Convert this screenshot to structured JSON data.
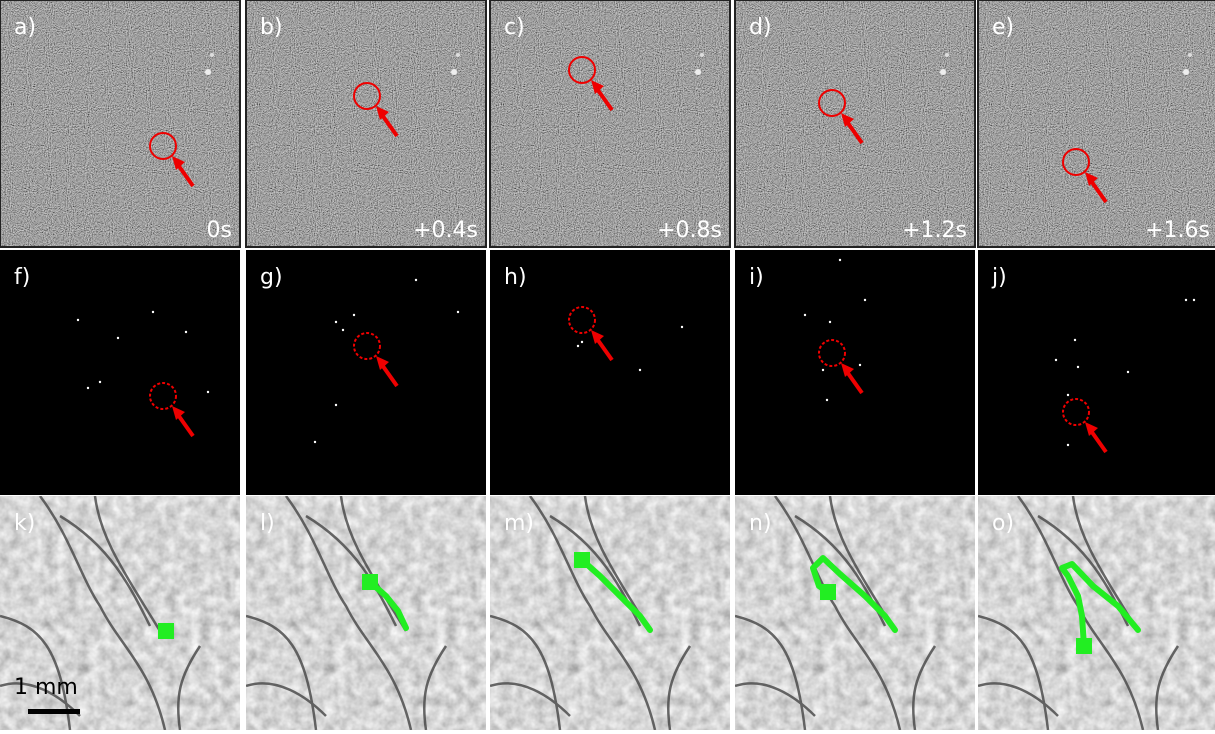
{
  "rows": [
    [
      {
        "label": "a)",
        "time": "0s"
      },
      {
        "label": "b)",
        "time": "+0.4s"
      },
      {
        "label": "c)",
        "time": "+0.8s"
      },
      {
        "label": "d)",
        "time": "+1.2s"
      },
      {
        "label": "e)",
        "time": "+1.6s"
      }
    ],
    [
      {
        "label": "f)"
      },
      {
        "label": "g)"
      },
      {
        "label": "h)"
      },
      {
        "label": "i)"
      },
      {
        "label": "j)"
      }
    ],
    [
      {
        "label": "k)"
      },
      {
        "label": "l)"
      },
      {
        "label": "m)"
      },
      {
        "label": "n)"
      },
      {
        "label": "o)"
      }
    ]
  ],
  "scale_bar_label": "1 mm"
}
